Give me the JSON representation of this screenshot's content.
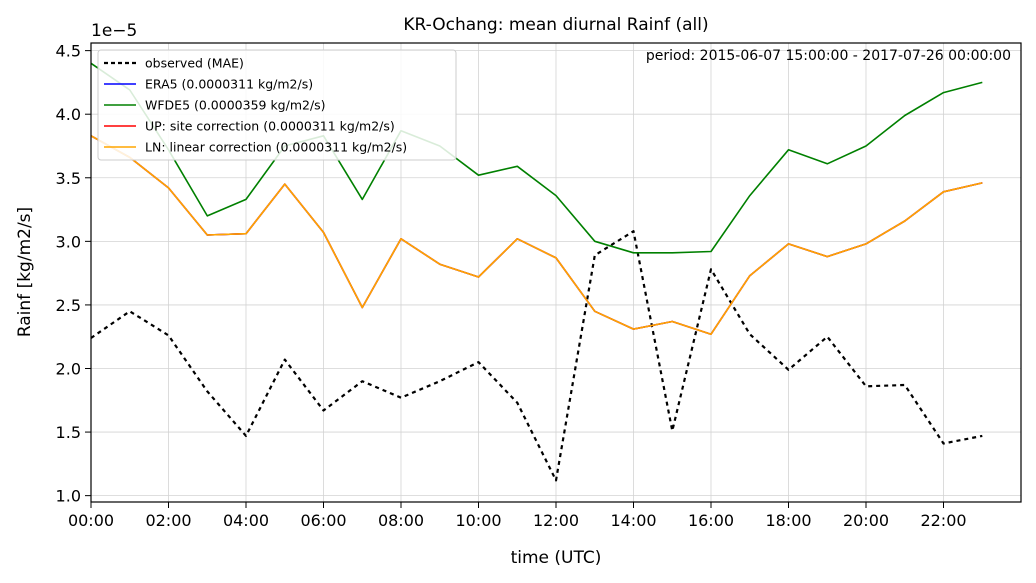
{
  "chart_data": {
    "type": "line",
    "title": "KR-Ochang: mean diurnal Rainf (all)",
    "annotation": "period: 2015-06-07 15:00:00 - 2017-07-26 00:00:00",
    "xlabel": "time (UTC)",
    "ylabel": "Rainf [kg/m2/s]",
    "y_offset_label": "1e−5",
    "y_scale_factor": 1e-05,
    "xlim": [
      0,
      24
    ],
    "ylim": [
      0.95,
      4.56
    ],
    "grid": true,
    "legend_position": "top-left",
    "x_ticks": [
      0,
      2,
      4,
      6,
      8,
      10,
      12,
      14,
      16,
      18,
      20,
      22
    ],
    "x_tick_labels": [
      "00:00",
      "02:00",
      "04:00",
      "06:00",
      "08:00",
      "10:00",
      "12:00",
      "14:00",
      "16:00",
      "18:00",
      "20:00",
      "22:00"
    ],
    "y_ticks": [
      1.0,
      1.5,
      2.0,
      2.5,
      3.0,
      3.5,
      4.0,
      4.5
    ],
    "y_tick_labels": [
      "1.0",
      "1.5",
      "2.0",
      "2.5",
      "3.0",
      "3.5",
      "4.0",
      "4.5"
    ],
    "x": [
      0,
      1,
      2,
      3,
      4,
      5,
      6,
      7,
      8,
      9,
      10,
      11,
      12,
      13,
      14,
      15,
      16,
      17,
      18,
      19,
      20,
      21,
      22,
      23
    ],
    "series": [
      {
        "name": "observed (MAE)",
        "color": "#000000",
        "dashed": true,
        "values": [
          2.24,
          2.45,
          2.26,
          1.82,
          1.47,
          2.07,
          1.67,
          1.9,
          1.77,
          1.9,
          2.05,
          1.73,
          1.12,
          2.89,
          3.08,
          1.51,
          2.78,
          2.27,
          1.99,
          2.25,
          1.86,
          1.87,
          1.41,
          1.47
        ]
      },
      {
        "name": "ERA5 (0.0000311 kg/m2/s)",
        "color": "#0000ff",
        "dashed": false,
        "values": [
          3.83,
          3.66,
          3.42,
          3.05,
          3.06,
          3.45,
          3.07,
          2.48,
          3.02,
          2.82,
          2.72,
          3.02,
          2.87,
          2.45,
          2.31,
          2.37,
          2.27,
          2.73,
          2.98,
          2.88,
          2.98,
          3.16,
          3.39,
          3.46
        ]
      },
      {
        "name": "WFDE5 (0.0000359 kg/m2/s)",
        "color": "#008000",
        "dashed": false,
        "values": [
          4.4,
          4.19,
          3.72,
          3.2,
          3.33,
          3.75,
          3.83,
          3.33,
          3.87,
          3.75,
          3.52,
          3.59,
          3.36,
          3.0,
          2.91,
          2.91,
          2.92,
          3.36,
          3.72,
          3.61,
          3.75,
          3.99,
          4.17,
          4.25
        ]
      },
      {
        "name": "UP: site correction (0.0000311 kg/m2/s)",
        "color": "#ff0000",
        "dashed": false,
        "values": [
          3.83,
          3.66,
          3.42,
          3.05,
          3.06,
          3.45,
          3.07,
          2.48,
          3.02,
          2.82,
          2.72,
          3.02,
          2.87,
          2.45,
          2.31,
          2.37,
          2.27,
          2.73,
          2.98,
          2.88,
          2.98,
          3.16,
          3.39,
          3.46
        ]
      },
      {
        "name": "LN: linear correction (0.0000311 kg/m2/s)",
        "color": "#ffa500",
        "dashed": false,
        "values": [
          3.83,
          3.66,
          3.42,
          3.05,
          3.06,
          3.45,
          3.07,
          2.48,
          3.02,
          2.82,
          2.72,
          3.02,
          2.87,
          2.45,
          2.31,
          2.37,
          2.27,
          2.73,
          2.98,
          2.88,
          2.98,
          3.16,
          3.39,
          3.46
        ]
      }
    ]
  }
}
